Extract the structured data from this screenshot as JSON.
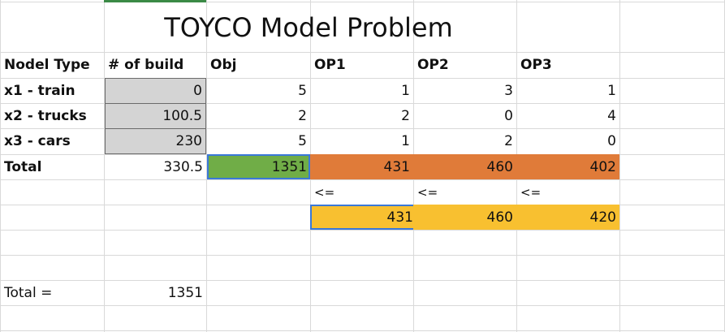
{
  "title": "TOYCO Model Problem",
  "headers": [
    "Nodel Type",
    "# of build",
    "Obj",
    "OP1",
    "OP2",
    "OP3"
  ],
  "rows": [
    {
      "label": "x1 - train",
      "build": "0",
      "obj": "5",
      "op1": "1",
      "op2": "3",
      "op3": "1"
    },
    {
      "label": "x2 - trucks",
      "build": "100.5",
      "obj": "2",
      "op1": "2",
      "op2": "0",
      "op3": "4"
    },
    {
      "label": "x3 - cars",
      "build": "230",
      "obj": "5",
      "op1": "1",
      "op2": "2",
      "op3": "0"
    }
  ],
  "total": {
    "label": "Total",
    "build": "330.5",
    "obj": "1351",
    "op1": "431",
    "op2": "460",
    "op3": "402"
  },
  "constraint_signs": [
    "<=",
    "<=",
    "<="
  ],
  "limits": [
    "431",
    "460",
    "420"
  ],
  "summary": {
    "label": "Total =",
    "value": "1351"
  },
  "colors": {
    "input_gray": "#d4d4d4",
    "objective_green": "#70ad47",
    "usage_orange": "#e07b39",
    "limit_yellow": "#f8c030",
    "selection_blue": "#3a78d8"
  }
}
